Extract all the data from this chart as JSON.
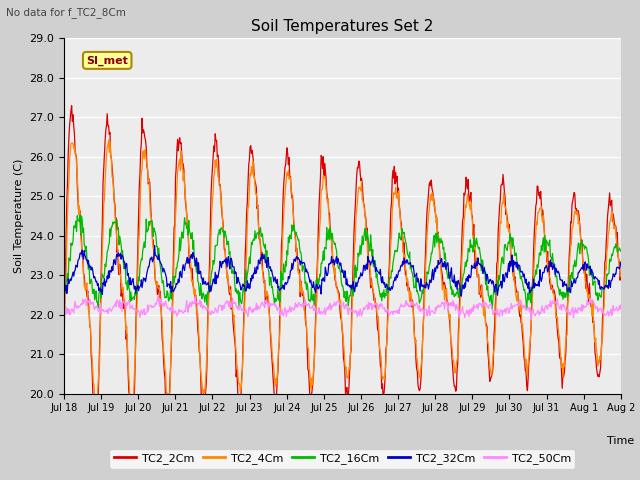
{
  "title": "Soil Temperatures Set 2",
  "ylabel": "Soil Temperature (C)",
  "xlabel": "Time",
  "no_data_text": "No data for f_TC2_8Cm",
  "si_met_label": "SI_met",
  "ylim": [
    20.0,
    29.0
  ],
  "yticks": [
    20.0,
    21.0,
    22.0,
    23.0,
    24.0,
    25.0,
    26.0,
    27.0,
    28.0,
    29.0
  ],
  "xtick_labels": [
    "Jul 18",
    "Jul 19",
    "Jul 20",
    "Jul 21",
    "Jul 22",
    "Jul 23",
    "Jul 24",
    "Jul 25",
    "Jul 26",
    "Jul 27",
    "Jul 28",
    "Jul 29",
    "Jul 30",
    "Jul 31",
    "Aug 1",
    "Aug 2"
  ],
  "series": [
    {
      "name": "TC2_2Cm",
      "color": "#dd0000"
    },
    {
      "name": "TC2_4Cm",
      "color": "#ff8800"
    },
    {
      "name": "TC2_16Cm",
      "color": "#00bb00"
    },
    {
      "name": "TC2_32Cm",
      "color": "#0000cc"
    },
    {
      "name": "TC2_50Cm",
      "color": "#ff88ff"
    }
  ],
  "fig_bg": "#d0d0d0",
  "plot_bg": "#ececec",
  "grid_color": "#ffffff"
}
